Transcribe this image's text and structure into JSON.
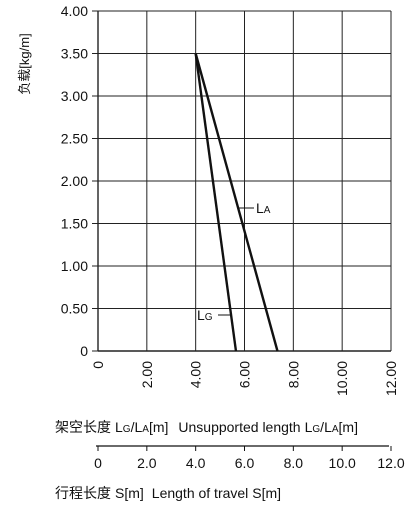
{
  "chart_data": {
    "type": "line",
    "ylabel": "负载[kg/m]",
    "xlabel_cn": "架空长度",
    "xlabel_en": "Unsupported length",
    "xlabel_var": {
      "L1": "L",
      "s1": "G",
      "sep": "/",
      "L2": "L",
      "s2": "A",
      "unit": "[m]"
    },
    "travel_label_cn": "行程长度",
    "travel_label_en": "Length of travel",
    "travel_var": "S[m]",
    "y_ticks": [
      "0",
      "0.50",
      "1.00",
      "1.50",
      "2.00",
      "2.50",
      "3.00",
      "3.50",
      "4.00"
    ],
    "x_ticks": [
      "0",
      "2.00",
      "4.00",
      "6.00",
      "8.00",
      "10.00",
      "12.00"
    ],
    "travel_ticks": [
      "0",
      "2.0",
      "4.0",
      "6.0",
      "8.0",
      "10.0",
      "12.0"
    ],
    "xlim": [
      0,
      12
    ],
    "ylim": [
      0,
      4
    ],
    "grid": true,
    "series": [
      {
        "name": "LG",
        "label_main": "L",
        "label_sub": "G",
        "x": [
          4.0,
          5.65
        ],
        "y": [
          3.5,
          0
        ]
      },
      {
        "name": "LA",
        "label_main": "L",
        "label_sub": "A",
        "x": [
          4.0,
          7.35
        ],
        "y": [
          3.5,
          0
        ]
      }
    ]
  }
}
